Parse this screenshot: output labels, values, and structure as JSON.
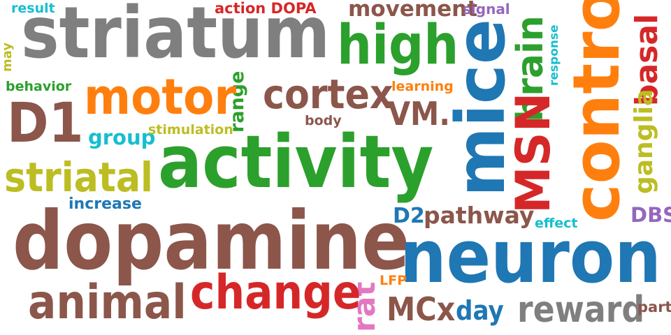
{
  "palette": {
    "brown": "#8c564b",
    "gray": "#7f7f7f",
    "green": "#2ca02c",
    "blue": "#1f77b4",
    "orange": "#ff7f0e",
    "red": "#d62728",
    "olive": "#bcbd22",
    "cyan": "#17becf",
    "purple": "#9467bd",
    "pink": "#e377c2"
  },
  "words": {
    "result": "result",
    "action_dopa": "action DOPA",
    "movement": "movement",
    "signal": "signal",
    "striatum": "striatum",
    "high": "high",
    "mice": "mice",
    "brain": "brain",
    "response": "response",
    "control": "control",
    "basal": "basal",
    "may": "may",
    "behavior": "behavior",
    "motor": "motor",
    "range": "range",
    "cortex": "cortex",
    "learning": "learning",
    "d1": "D1",
    "vm": "VM.",
    "msn": "MSN",
    "ganglia": "ganglia",
    "body": "body",
    "group": "group",
    "stimulation": "stimulation",
    "activity": "activity",
    "striatal": "striatal",
    "increase": "increase",
    "d2": "D2",
    "pathway": "pathway",
    "effect": "effect",
    "dbs": "DBS",
    "dopamine": "dopamine",
    "neuron": "neuron",
    "lfp": "LFP",
    "rat": "rat",
    "animal": "animal",
    "change": "change",
    "mcx": "MCx",
    "day": "day",
    "reward": "reward",
    "part": "part"
  }
}
